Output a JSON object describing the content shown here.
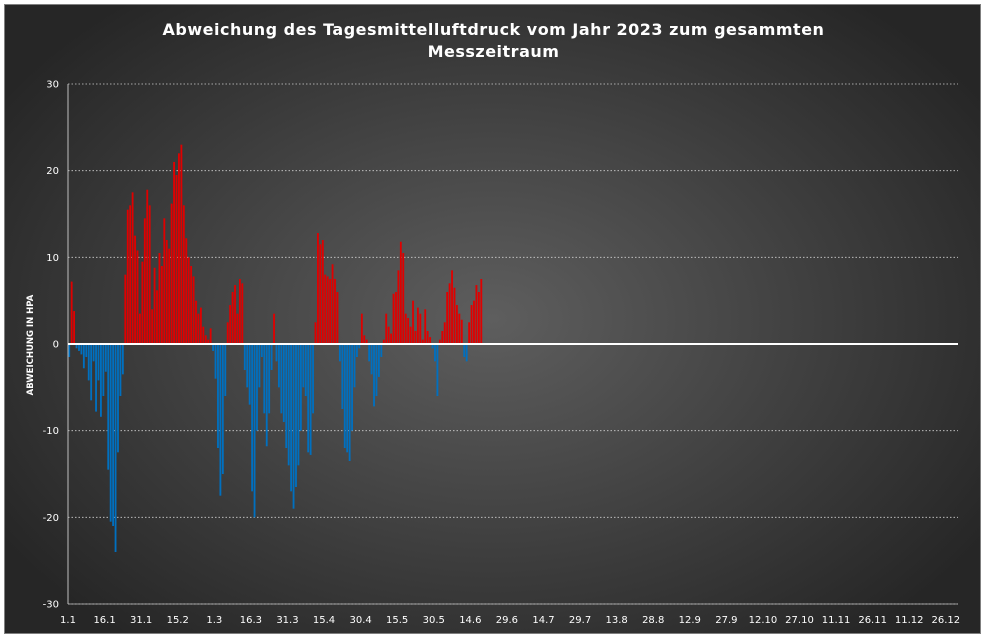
{
  "chart_data": {
    "type": "bar",
    "title_line1": "Abweichung des Tagesmittelluftdruck vom Jahr 2023 zum gesammten",
    "title_line2": "Messzeitraum",
    "ylabel": "ABWEICHUNG IN HPA",
    "xlabel": "",
    "ylim": [
      -30,
      30
    ],
    "yticks": [
      30,
      20,
      10,
      0,
      -10,
      -20,
      -30
    ],
    "x_tick_labels": [
      "1.1",
      "16.1",
      "31.1",
      "15.2",
      "1.3",
      "16.3",
      "31.3",
      "15.4",
      "30.4",
      "15.5",
      "30.5",
      "14.6",
      "29.6",
      "14.7",
      "29.7",
      "13.8",
      "28.8",
      "12.9",
      "27.9",
      "12.10",
      "27.10",
      "11.11",
      "26.11",
      "11.12",
      "26.12"
    ],
    "x_days_per_tick": 15,
    "x_days_total": 365,
    "grid": "horizontal dotted",
    "legend": "none",
    "colors": {
      "positive": "#e00000",
      "negative": "#0070c0",
      "zero_line": "#ffffff",
      "grid": "#d0d0d0"
    },
    "series": [
      {
        "values": [
          -1.5,
          7.2,
          3.8,
          -0.5,
          -0.8,
          -1.2,
          -2.8,
          -1.5,
          -4.2,
          -6.5,
          -2.0,
          -7.8,
          -4.2,
          -8.4,
          -6.0,
          -3.2,
          -14.5,
          -20.5,
          -21.0,
          -24.0,
          -12.5,
          -6.0,
          -3.5,
          8.0,
          15.5,
          16.0,
          17.5,
          12.5,
          10.8,
          3.5,
          9.5,
          14.5,
          17.8,
          16.0,
          4.0,
          8.8,
          6.2,
          10.5,
          9.0,
          14.5,
          12.0,
          11.0,
          16.2,
          21.0,
          19.5,
          22.0,
          23.0,
          16.0,
          12.2,
          10.0,
          9.0,
          7.8,
          5.0,
          3.5,
          4.2,
          2.0,
          1.0,
          0.5,
          1.8,
          -0.8,
          -4.0,
          -12.0,
          -17.5,
          -15.0,
          -6.0,
          2.5,
          4.5,
          6.0,
          6.8,
          3.5,
          7.5,
          7.0,
          -3.0,
          -5.0,
          -7.0,
          -17.0,
          -20.0,
          -10.0,
          -5.0,
          -1.5,
          -8.0,
          -11.8,
          -8.0,
          -3.0,
          3.5,
          -2.0,
          -5.0,
          -8.0,
          -9.0,
          -12.0,
          -14.0,
          -17.0,
          -19.0,
          -16.5,
          -14.0,
          -10.0,
          -5.0,
          -6.0,
          -12.5,
          -12.8,
          -8.0,
          2.5,
          12.8,
          11.5,
          12.0,
          8.0,
          7.8,
          7.5,
          9.2,
          7.5,
          6.0,
          -2.0,
          -7.5,
          -12.0,
          -12.5,
          -13.5,
          -10.0,
          -5.0,
          -1.5,
          -0.5,
          3.5,
          1.0,
          0.5,
          -2.0,
          -3.5,
          -7.2,
          -6.0,
          -3.8,
          -1.5,
          0.5,
          3.5,
          2.0,
          1.2,
          5.8,
          6.0,
          8.5,
          11.8,
          10.5,
          3.5,
          3.0,
          2.0,
          5.0,
          1.5,
          4.2,
          3.5,
          0.5,
          4.0,
          1.5,
          0.8,
          -0.5,
          -2.0,
          -6.0,
          0.5,
          1.5,
          2.5,
          6.0,
          7.0,
          8.5,
          6.5,
          4.5,
          3.5,
          2.8,
          -1.5,
          -2.0,
          2.5,
          4.5,
          5.0,
          6.8,
          6.0,
          7.5
        ]
      }
    ]
  }
}
